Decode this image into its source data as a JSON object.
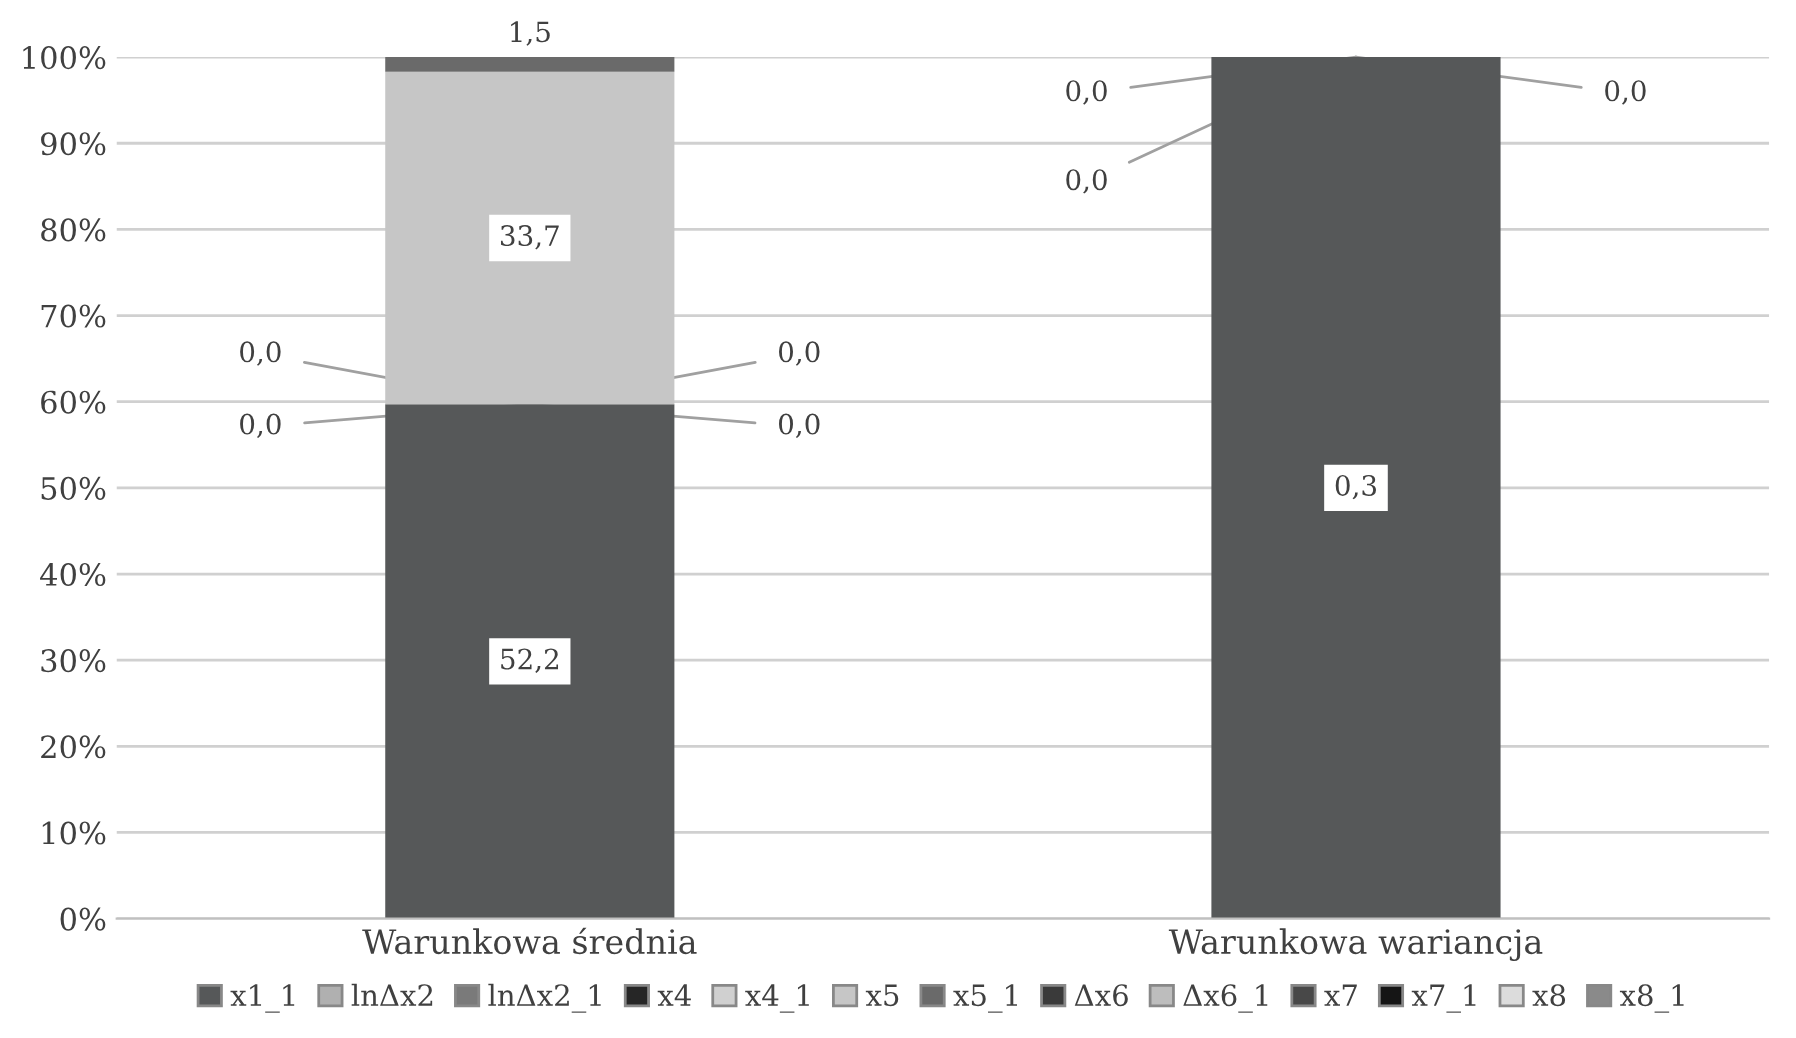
{
  "chart_data": {
    "type": "bar",
    "stacked": true,
    "categories": [
      "Warunkowa średnia",
      "Warunkowa wariancja"
    ],
    "ylim": [
      0,
      100
    ],
    "yticks": [
      {
        "value": 0,
        "label": "0%"
      },
      {
        "value": 10,
        "label": "10%"
      },
      {
        "value": 20,
        "label": "20%"
      },
      {
        "value": 30,
        "label": "30%"
      },
      {
        "value": 40,
        "label": "40%"
      },
      {
        "value": 50,
        "label": "50%"
      },
      {
        "value": 60,
        "label": "60%"
      },
      {
        "value": 70,
        "label": "70%"
      },
      {
        "value": 80,
        "label": "80%"
      },
      {
        "value": 90,
        "label": "90%"
      },
      {
        "value": 100,
        "label": "100%"
      }
    ],
    "grid": "y",
    "legend": "bottom",
    "series": [
      {
        "name": "x1_1",
        "color": "#565859",
        "values": [
          59.7,
          100
        ]
      },
      {
        "name": "lnΔx2",
        "color": "#b0b0b0",
        "values": [
          0,
          0
        ]
      },
      {
        "name": "lnΔx2_1",
        "color": "#7a7a7a",
        "values": [
          0,
          0
        ]
      },
      {
        "name": "x4",
        "color": "#262626",
        "values": [
          0,
          0
        ]
      },
      {
        "name": "x4_1",
        "color": "#d0d0d0",
        "values": [
          0,
          null
        ]
      },
      {
        "name": "x5",
        "color": "#c6c6c6",
        "values": [
          38.6,
          null
        ]
      },
      {
        "name": "x5_1",
        "color": "#6a6a6a",
        "values": [
          1.7,
          null
        ]
      },
      {
        "name": "Δx6",
        "color": "#3a3a3a",
        "values": [
          null,
          null
        ]
      },
      {
        "name": "Δx6_1",
        "color": "#bdbdbd",
        "values": [
          null,
          null
        ]
      },
      {
        "name": "x7",
        "color": "#484848",
        "values": [
          null,
          null
        ]
      },
      {
        "name": "x7_1",
        "color": "#151515",
        "values": [
          null,
          null
        ]
      },
      {
        "name": "x8",
        "color": "#dcdcdc",
        "values": [
          null,
          null
        ]
      },
      {
        "name": "x8_1",
        "color": "#8a8a8a",
        "values": [
          null,
          null
        ]
      }
    ],
    "annotations": [
      {
        "text": "52,2",
        "x": "Warunkowa średnia",
        "y": 29.85
      },
      {
        "text": "0,0",
        "x": "Warunkowa średnia",
        "y": 59.7
      },
      {
        "text": "0,0",
        "x": "Warunkowa średnia",
        "y": 59.7
      },
      {
        "text": "0,0",
        "x": "Warunkowa średnia",
        "y": 59.7
      },
      {
        "text": "0,0",
        "x": "Warunkowa średnia",
        "y": 59.7
      },
      {
        "text": "33,7",
        "x": "Warunkowa średnia",
        "y": 79
      },
      {
        "text": "1,5",
        "x": "Warunkowa średnia",
        "y": 99.15
      },
      {
        "text": "0,3",
        "x": "Warunkowa wariancja",
        "y": 50
      },
      {
        "text": "0,0",
        "x": "Warunkowa wariancja",
        "y": 100
      },
      {
        "text": "0,0",
        "x": "Warunkowa wariancja",
        "y": 100
      },
      {
        "text": "0,0",
        "x": "Warunkowa wariancja",
        "y": 100
      }
    ]
  }
}
